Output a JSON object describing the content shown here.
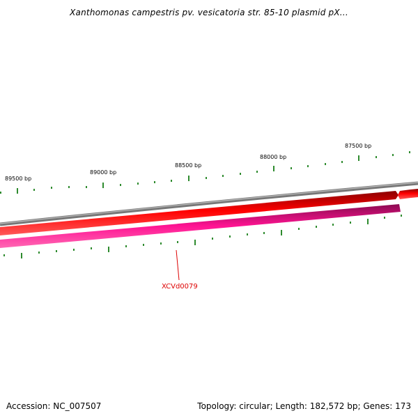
{
  "header": {
    "title": "Xanthomonas campestris pv. vesicatoria str. 85-10 plasmid pX..."
  },
  "footer": {
    "accession": "Accession: NC_007507",
    "stats": "Topology: circular; Length: 182,572 bp; Genes: 173"
  },
  "map": {
    "ruler_labels": [
      "89500 bp",
      "89000 bp",
      "88500 bp",
      "88000 bp",
      "87500 bp"
    ],
    "gene_label": "XCVd0079",
    "colors": {
      "backbone": "#8a8a8a",
      "forward_gene": "#ff0000",
      "reverse_gene": "#ff1493",
      "tick": "#2e8b2e",
      "gene_label": "#dd0000"
    }
  }
}
